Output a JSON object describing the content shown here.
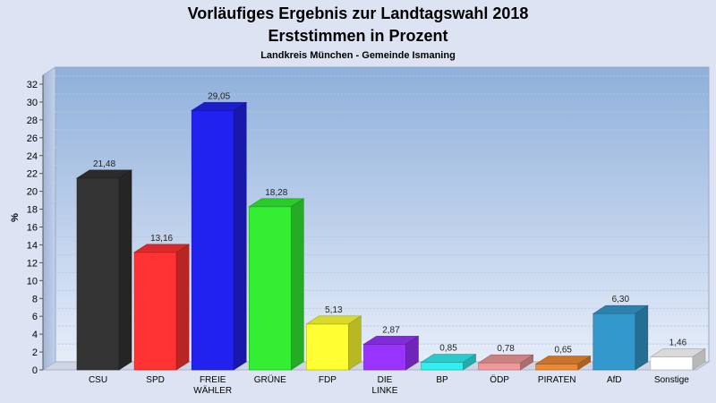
{
  "chart_data": {
    "type": "bar",
    "title": "Vorläufiges Ergebnis zur Landtagswahl 2018",
    "subtitle": "Erststimmen in Prozent",
    "caption": "Landkreis München - Gemeinde Ismaning",
    "ylabel": "%",
    "xlabel": "",
    "ylim": [
      0,
      32
    ],
    "yticks": [
      0,
      2,
      4,
      6,
      8,
      10,
      12,
      14,
      16,
      18,
      20,
      22,
      24,
      26,
      28,
      30,
      32
    ],
    "grid": true,
    "categories": [
      [
        "CSU"
      ],
      [
        "SPD"
      ],
      [
        "FREIE",
        "WÄHLER"
      ],
      [
        "GRÜNE"
      ],
      [
        "FDP"
      ],
      [
        "DIE",
        "LINKE"
      ],
      [
        "BP"
      ],
      [
        "ÖDP"
      ],
      [
        "PIRATEN"
      ],
      [
        "AfD"
      ],
      [
        "Sonstige"
      ]
    ],
    "values": [
      21.48,
      13.16,
      29.05,
      18.28,
      5.13,
      2.87,
      0.85,
      0.78,
      0.65,
      6.3,
      1.46
    ],
    "value_labels": [
      "21,48",
      "13,16",
      "29,05",
      "18,28",
      "5,13",
      "2,87",
      "0,85",
      "0,78",
      "0,65",
      "6,30",
      "1,46"
    ],
    "colors": [
      "#333333",
      "#ff3333",
      "#2222ee",
      "#33ee33",
      "#ffff33",
      "#9933ff",
      "#33eeee",
      "#ee9999",
      "#ee8833",
      "#3399cc",
      "#ffffff"
    ]
  }
}
